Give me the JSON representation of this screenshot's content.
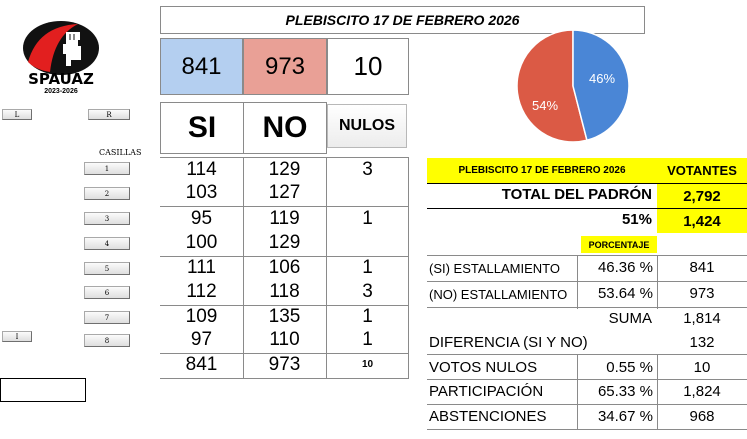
{
  "logo": {
    "text": "SPAUAZ",
    "years": "2023-2026"
  },
  "title": "PLEBISCITO 17 DE FEBRERO 2026",
  "totals": {
    "si": "841",
    "no": "973",
    "nulos": "10"
  },
  "headers": {
    "si": "SI",
    "no": "NO",
    "nulos": "NULOS"
  },
  "colors": {
    "si_box": "#b4cff0",
    "no_box": "#e9a096",
    "yellow": "#ffff00",
    "pie_si": "#4a86d6",
    "pie_no": "#db5a45"
  },
  "side_buttons": {
    "l": "L",
    "r": "R",
    "i": "I"
  },
  "casillas_label": "CASILLAS",
  "casillas": [
    {
      "btn": "1",
      "si": "114",
      "no": "129",
      "nulos": "3"
    },
    {
      "btn": "2",
      "si": "103",
      "no": "127",
      "nulos": ""
    },
    {
      "btn": "3",
      "si": "95",
      "no": "119",
      "nulos": "1"
    },
    {
      "btn": "4",
      "si": "100",
      "no": "129",
      "nulos": ""
    },
    {
      "btn": "5",
      "si": "111",
      "no": "106",
      "nulos": "1"
    },
    {
      "btn": "6",
      "si": "112",
      "no": "118",
      "nulos": "3"
    },
    {
      "btn": "7",
      "si": "109",
      "no": "135",
      "nulos": "1"
    },
    {
      "btn": "8",
      "si": "97",
      "no": "110",
      "nulos": "1"
    }
  ],
  "sum_row": {
    "si": "841",
    "no": "973",
    "nulos": "10"
  },
  "pie": {
    "si_percent": 46,
    "no_percent": 54,
    "si_label": "46%",
    "no_label": "54%"
  },
  "summary": {
    "header_title": "PLEBISCITO 17 DE FEBRERO 2026",
    "header_votantes": "VOTANTES",
    "padron_label": "TOTAL DEL PADRÓN",
    "padron_value": "2,792",
    "pct51": "51%",
    "votantes_value": "1,424",
    "porcentaje_label": "PORCENTAJE",
    "rows": [
      {
        "label": "(SI) ESTALLAMIENTO",
        "pct": "46.36 %",
        "value": "841"
      },
      {
        "label": "(NO) ESTALLAMIENTO",
        "pct": "53.64 %",
        "value": "973"
      }
    ],
    "suma_label": "SUMA",
    "suma_value": "1,814",
    "diferencia_label": "DIFERENCIA (SI Y NO)",
    "diferencia_value": "132",
    "votos_nulos_label": "VOTOS NULOS",
    "votos_nulos_pct": "0.55 %",
    "votos_nulos_value": "10",
    "participacion_label": "PARTICIPACIÓN",
    "participacion_pct": "65.33 %",
    "participacion_value": "1,824",
    "abstenciones_label": "ABSTENCIONES",
    "abstenciones_pct": "34.67 %",
    "abstenciones_value": "968"
  }
}
